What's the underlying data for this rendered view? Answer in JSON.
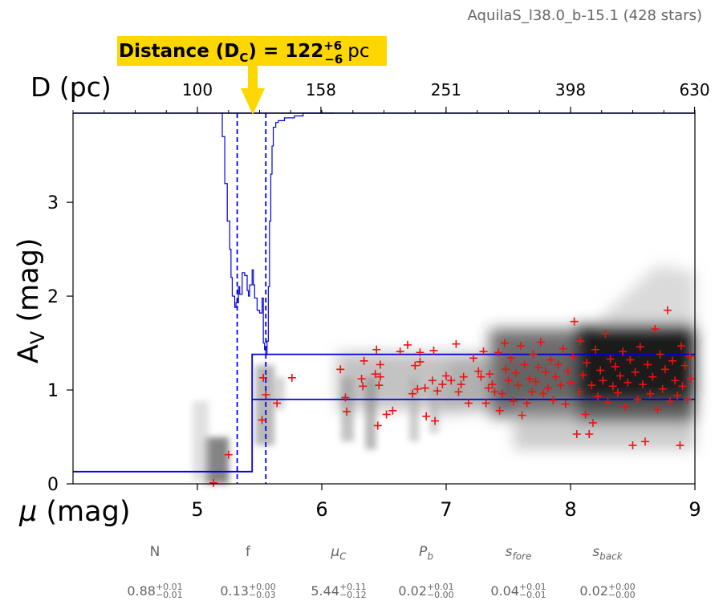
{
  "header": {
    "field_name": "AquilaS_l38.0_b-15.1 (428 stars)",
    "distance_prefix": "Distance (D",
    "distance_sub": "C",
    "distance_mid": ") = 122",
    "distance_plus": "+6",
    "distance_minus": "−6",
    "distance_unit": "pc"
  },
  "params": [
    {
      "label": "N",
      "italic": false,
      "value": "0.88",
      "plus": "+0.01",
      "minus": "−0.01"
    },
    {
      "label": "f",
      "italic": false,
      "value": "0.13",
      "plus": "+0.00",
      "minus": "−0.03"
    },
    {
      "label": "μ",
      "sub": "C",
      "italic": true,
      "value": "5.44",
      "plus": "+0.11",
      "minus": "−0.12"
    },
    {
      "label": "P",
      "sub": "b",
      "italic": true,
      "value": "0.02",
      "plus": "+0.01",
      "minus": "−0.00"
    },
    {
      "label": "s",
      "sub": "fore",
      "italic": true,
      "value": "0.04",
      "plus": "+0.01",
      "minus": "−0.01"
    },
    {
      "label": "s",
      "sub": "back",
      "italic": true,
      "value": "0.02",
      "plus": "+0.00",
      "minus": "−0.00"
    }
  ],
  "chart_data": {
    "type": "scatter",
    "xlabel": "μ (mag)",
    "ylabel": "A_V (mag)",
    "top_axis_label": "D (pc)",
    "xlim": [
      4,
      9
    ],
    "ylim": [
      0,
      3.95
    ],
    "xticks": [
      "5",
      "6",
      "7",
      "8",
      "9"
    ],
    "yticks": [
      "0",
      "1",
      "2",
      "3"
    ],
    "top_ticks": [
      {
        "mu": 5.0,
        "label": "100"
      },
      {
        "mu": 5.993,
        "label": "158"
      },
      {
        "mu": 6.999,
        "label": "251"
      },
      {
        "mu": 8.0,
        "label": "398"
      },
      {
        "mu": 8.997,
        "label": "630"
      }
    ],
    "distance_mu": 5.44,
    "distance_mu_lower": 5.32,
    "distance_mu_upper": 5.55,
    "foreground_av": 0.13,
    "background_av_low": 0.9,
    "background_av_high": 1.38,
    "colors": {
      "stars": "#ee1111",
      "model": "#0000dd",
      "annotation": "#ffd700"
    },
    "stars": [
      [
        5.13,
        0.01
      ],
      [
        5.25,
        0.31
      ],
      [
        5.52,
        0.68
      ],
      [
        5.53,
        1.13
      ],
      [
        5.55,
        0.95
      ],
      [
        5.64,
        0.86
      ],
      [
        5.76,
        1.13
      ],
      [
        6.15,
        1.22
      ],
      [
        6.19,
        0.92
      ],
      [
        6.2,
        0.77
      ],
      [
        6.32,
        1.12
      ],
      [
        6.33,
        1.04
      ],
      [
        6.34,
        1.31
      ],
      [
        6.43,
        1.17
      ],
      [
        6.44,
        1.43
      ],
      [
        6.45,
        0.62
      ],
      [
        6.46,
        1.05
      ],
      [
        6.47,
        1.14
      ],
      [
        6.47,
        1.27
      ],
      [
        6.52,
        0.74
      ],
      [
        6.57,
        0.78
      ],
      [
        6.63,
        1.41
      ],
      [
        6.69,
        1.48
      ],
      [
        6.73,
        0.96
      ],
      [
        6.75,
        1.26
      ],
      [
        6.77,
        1.01
      ],
      [
        6.79,
        1.3
      ],
      [
        6.79,
        1.4
      ],
      [
        6.83,
        1.02
      ],
      [
        6.84,
        0.72
      ],
      [
        6.89,
        1.1
      ],
      [
        6.9,
        1.42
      ],
      [
        6.91,
        0.67
      ],
      [
        6.93,
        0.99
      ],
      [
        6.97,
        1.06
      ],
      [
        7.0,
        1.15
      ],
      [
        7.04,
        1.1
      ],
      [
        7.08,
        1.49
      ],
      [
        7.1,
        0.98
      ],
      [
        7.12,
        1.06
      ],
      [
        7.14,
        1.14
      ],
      [
        7.18,
        0.86
      ],
      [
        7.22,
        1.34
      ],
      [
        7.26,
        1.2
      ],
      [
        7.28,
        1.14
      ],
      [
        7.3,
        1.41
      ],
      [
        7.32,
        0.86
      ],
      [
        7.34,
        1.02
      ],
      [
        7.35,
        1.17
      ],
      [
        7.37,
        1.06
      ],
      [
        7.39,
        0.98
      ],
      [
        7.42,
        1.4
      ],
      [
        7.43,
        0.78
      ],
      [
        7.45,
        0.96
      ],
      [
        7.47,
        1.5
      ],
      [
        7.48,
        1.22
      ],
      [
        7.5,
        1.1
      ],
      [
        7.52,
        1.34
      ],
      [
        7.54,
        0.88
      ],
      [
        7.56,
        1.18
      ],
      [
        7.58,
        1.05
      ],
      [
        7.6,
        1.47
      ],
      [
        7.61,
        0.73
      ],
      [
        7.63,
        1.27
      ],
      [
        7.65,
        0.86
      ],
      [
        7.67,
        1.12
      ],
      [
        7.69,
        0.98
      ],
      [
        7.7,
        1.38
      ],
      [
        7.72,
        1.09
      ],
      [
        7.74,
        1.24
      ],
      [
        7.76,
        1.51
      ],
      [
        7.78,
        0.96
      ],
      [
        7.8,
        1.19
      ],
      [
        7.82,
        1.02
      ],
      [
        7.84,
        1.32
      ],
      [
        7.86,
        0.89
      ],
      [
        7.88,
        1.14
      ],
      [
        7.9,
        1.27
      ],
      [
        7.92,
        1.05
      ],
      [
        7.94,
        1.44
      ],
      [
        7.96,
        0.85
      ],
      [
        7.98,
        1.2
      ],
      [
        8.0,
        1.08
      ],
      [
        8.02,
        1.36
      ],
      [
        8.03,
        1.73
      ],
      [
        8.05,
        0.53
      ],
      [
        8.07,
        0.98
      ],
      [
        8.08,
        1.52
      ],
      [
        8.1,
        1.16
      ],
      [
        8.12,
        0.74
      ],
      [
        8.13,
        1.29
      ],
      [
        8.15,
        0.53
      ],
      [
        8.17,
        1.05
      ],
      [
        8.18,
        0.65
      ],
      [
        8.2,
        1.43
      ],
      [
        8.22,
        0.93
      ],
      [
        8.24,
        1.21
      ],
      [
        8.26,
        1.1
      ],
      [
        8.28,
        1.6
      ],
      [
        8.3,
        0.87
      ],
      [
        8.32,
        1.33
      ],
      [
        8.34,
        1.04
      ],
      [
        8.36,
        1.25
      ],
      [
        8.38,
        0.97
      ],
      [
        8.4,
        1.15
      ],
      [
        8.42,
        1.41
      ],
      [
        8.44,
        0.82
      ],
      [
        8.46,
        1.08
      ],
      [
        8.48,
        1.32
      ],
      [
        8.5,
        0.41
      ],
      [
        8.52,
        1.19
      ],
      [
        8.54,
        0.9
      ],
      [
        8.56,
        1.46
      ],
      [
        8.58,
        1.06
      ],
      [
        8.6,
        0.45
      ],
      [
        8.62,
        1.27
      ],
      [
        8.64,
        0.96
      ],
      [
        8.66,
        1.14
      ],
      [
        8.68,
        1.65
      ],
      [
        8.7,
        0.79
      ],
      [
        8.72,
        1.38
      ],
      [
        8.74,
        1.01
      ],
      [
        8.76,
        1.22
      ],
      [
        8.78,
        1.85
      ],
      [
        8.8,
        0.88
      ],
      [
        8.82,
        1.31
      ],
      [
        8.84,
        1.1
      ],
      [
        8.86,
        0.94
      ],
      [
        8.88,
        0.41
      ],
      [
        8.89,
        1.47
      ],
      [
        8.9,
        1.04
      ],
      [
        8.92,
        1.26
      ],
      [
        8.94,
        0.9
      ],
      [
        8.96,
        1.36
      ],
      [
        8.97,
        1.12
      ]
    ]
  }
}
